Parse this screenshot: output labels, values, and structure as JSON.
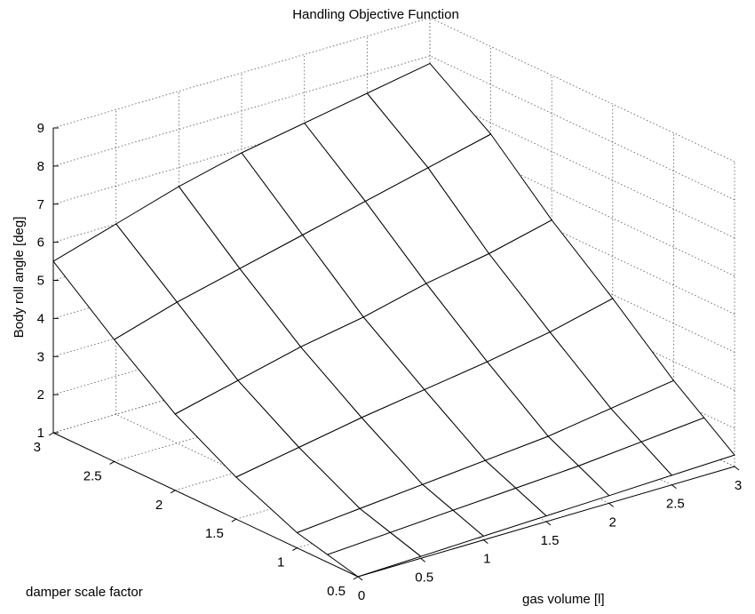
{
  "chart_data": {
    "type": "surface",
    "title": "Handling Objective Function",
    "xlabel": "gas volume [l]",
    "ylabel": "damper scale factor",
    "zlabel": "Body roll angle [deg]",
    "xlim": [
      0,
      3
    ],
    "ylim": [
      0.5,
      3
    ],
    "zlim": [
      1,
      9
    ],
    "grid": true,
    "x_ticks": [
      "0",
      "0.5",
      "1",
      "1.5",
      "2",
      "2.5",
      "3"
    ],
    "y_ticks": [
      "0.5",
      "1",
      "1.5",
      "2",
      "2.5",
      "3"
    ],
    "z_ticks": [
      "1",
      "2",
      "3",
      "4",
      "5",
      "6",
      "7",
      "8",
      "9"
    ],
    "x": [
      0,
      0.5,
      1,
      1.5,
      2,
      2.5,
      3
    ],
    "y": [
      0.5,
      0.75,
      1,
      1.5,
      2,
      2.5,
      3
    ],
    "z": [
      [
        1.0,
        1.05,
        1.1,
        1.15,
        1.2,
        1.25,
        1.3
      ],
      [
        1.2,
        1.3,
        1.4,
        1.5,
        1.6,
        1.75,
        1.9
      ],
      [
        1.4,
        1.55,
        1.7,
        1.85,
        2.0,
        2.25,
        2.5
      ],
      [
        2.1,
        2.4,
        2.7,
        2.95,
        3.2,
        3.5,
        3.9
      ],
      [
        3.0,
        3.4,
        3.8,
        4.1,
        4.5,
        4.8,
        5.2
      ],
      [
        4.2,
        4.7,
        5.1,
        5.5,
        5.9,
        6.3,
        6.7
      ],
      [
        5.5,
        6.0,
        6.5,
        6.9,
        7.2,
        7.5,
        7.8
      ]
    ]
  }
}
